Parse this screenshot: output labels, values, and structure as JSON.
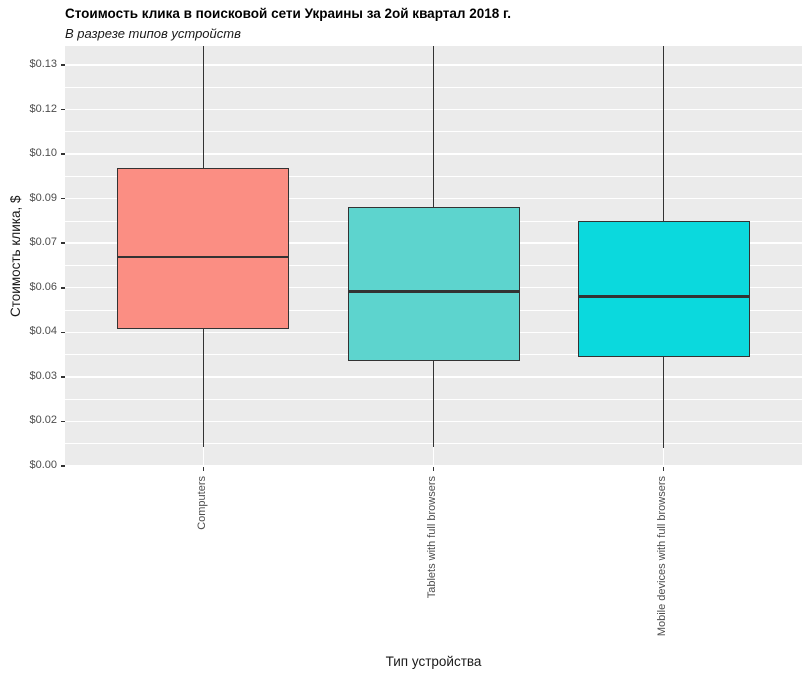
{
  "chart_data": {
    "type": "boxplot",
    "title": "Стоимость клика в поисковой сети Украины за 2ой квартал 2018 г.",
    "subtitle": "В разрезе типов устройств",
    "xlabel": "Тип устройства",
    "ylabel": "Стоимость клика, $",
    "legend": "none",
    "grid": "on",
    "y_axis": {
      "currency_format": "dollar",
      "visible_range": [
        0,
        0.1414
      ],
      "ticks": [
        {
          "value": 0.0,
          "label": "$0.00"
        },
        {
          "value": 0.015,
          "label": "$0.02"
        },
        {
          "value": 0.03,
          "label": "$0.03"
        },
        {
          "value": 0.045,
          "label": "$0.04"
        },
        {
          "value": 0.06,
          "label": "$0.06"
        },
        {
          "value": 0.075,
          "label": "$0.07"
        },
        {
          "value": 0.09,
          "label": "$0.09"
        },
        {
          "value": 0.105,
          "label": "$0.10"
        },
        {
          "value": 0.12,
          "label": "$0.12"
        },
        {
          "value": 0.135,
          "label": "$0.13"
        }
      ]
    },
    "series": [
      {
        "name": "Computers",
        "fill_color": "#FB8E83",
        "whisker_low": 0.0065,
        "q1": 0.0462,
        "median": 0.0703,
        "q3": 0.1003,
        "whisker_high_clipped_at_top": true
      },
      {
        "name": "Tablets with full browsers",
        "fill_color": "#5DD4CE",
        "whisker_low": 0.0065,
        "q1": 0.0354,
        "median": 0.0587,
        "q3": 0.0872,
        "whisker_high_clipped_at_top": true
      },
      {
        "name": "Mobile devices with full browsers",
        "fill_color": "#0BD9DD",
        "whisker_low": 0.0062,
        "q1": 0.0366,
        "median": 0.0571,
        "q3": 0.0826,
        "whisker_high_clipped_at_top": true
      }
    ],
    "colors": {
      "panel_background": "#EBEBEB",
      "gridline": "#FFFFFF",
      "box_outline": "#333333",
      "axis_text": "#4D4D4D",
      "title_text": "#000000"
    }
  }
}
